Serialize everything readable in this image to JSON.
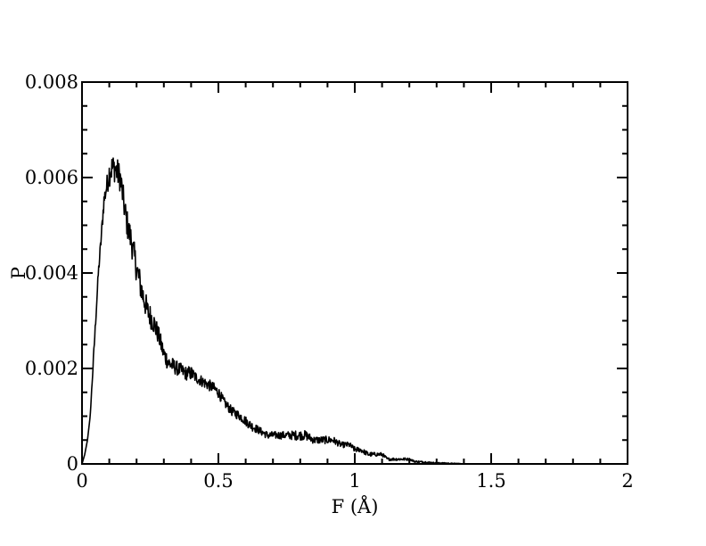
{
  "chart_data": {
    "type": "line",
    "title": "",
    "xlabel": "F (Å)",
    "ylabel": "P",
    "xlim": [
      0,
      2
    ],
    "ylim": [
      0,
      0.008
    ],
    "x_ticks": [
      0,
      0.5,
      1,
      1.5,
      2
    ],
    "x_tick_labels": [
      "0",
      "0.5",
      "1",
      "1.5",
      "2"
    ],
    "y_ticks": [
      0,
      0.002,
      0.004,
      0.006,
      0.008
    ],
    "y_tick_labels": [
      "0",
      "0.002",
      "0.004",
      "0.006",
      "0.008"
    ],
    "grid": false,
    "legend": "none",
    "line_color": "#000000",
    "series": [
      {
        "x": [
          0.0,
          0.01,
          0.02,
          0.03,
          0.04,
          0.05,
          0.06,
          0.07,
          0.08,
          0.09,
          0.1,
          0.11,
          0.12,
          0.13,
          0.14,
          0.15,
          0.16,
          0.17,
          0.18,
          0.19,
          0.2,
          0.22,
          0.24,
          0.26,
          0.28,
          0.3,
          0.32,
          0.35,
          0.38,
          0.4,
          0.42,
          0.45,
          0.48,
          0.5,
          0.52,
          0.55,
          0.58,
          0.6,
          0.62,
          0.65,
          0.68,
          0.7,
          0.72,
          0.75,
          0.78,
          0.8,
          0.82,
          0.85,
          0.88,
          0.9,
          0.92,
          0.95,
          0.98,
          1.0,
          1.02,
          1.05,
          1.08,
          1.1,
          1.12,
          1.15,
          1.18,
          1.2,
          1.22,
          1.25,
          1.28,
          1.3,
          1.32,
          1.35,
          1.38,
          1.4,
          1.42,
          1.45
        ],
        "y": [
          0.0,
          0.0002,
          0.0005,
          0.001,
          0.002,
          0.003,
          0.004,
          0.0047,
          0.0055,
          0.0058,
          0.0061,
          0.0062,
          0.0062,
          0.0061,
          0.006,
          0.0056,
          0.0052,
          0.0049,
          0.0047,
          0.0044,
          0.0041,
          0.0036,
          0.0032,
          0.003,
          0.0027,
          0.0023,
          0.0021,
          0.002,
          0.0019,
          0.0019,
          0.0018,
          0.0017,
          0.0016,
          0.0015,
          0.0013,
          0.0011,
          0.001,
          0.0009,
          0.0008,
          0.0007,
          0.0006,
          0.0006,
          0.0006,
          0.0006,
          0.0006,
          0.0006,
          0.0006,
          0.0005,
          0.0005,
          0.0005,
          0.0005,
          0.0004,
          0.0004,
          0.0003,
          0.0003,
          0.0002,
          0.0002,
          0.0002,
          0.0001,
          0.0001,
          0.0001,
          0.0001,
          5e-05,
          4e-05,
          3e-05,
          2e-05,
          2e-05,
          1e-05,
          1e-05,
          0.0,
          0.0,
          0.0
        ],
        "noise": [
          0,
          0,
          0,
          0,
          0.0001,
          0.0001,
          0.00012,
          0.00015,
          0.0002,
          0.0002,
          0.0003,
          0.0003,
          0.0003,
          0.0003,
          0.0003,
          0.0003,
          0.0003,
          0.0003,
          0.0003,
          0.0003,
          0.0003,
          0.0003,
          0.00025,
          0.00025,
          0.0002,
          0.0002,
          0.00018,
          0.00015,
          0.00015,
          0.00015,
          0.00012,
          0.00012,
          0.00012,
          0.00012,
          0.0001,
          0.0001,
          0.0001,
          0.0001,
          0.0001,
          8e-05,
          8e-05,
          8e-05,
          8e-05,
          8e-05,
          0.0001,
          0.0001,
          0.0001,
          8e-05,
          8e-05,
          8e-05,
          8e-05,
          6e-05,
          6e-05,
          6e-05,
          5e-05,
          5e-05,
          4e-05,
          4e-05,
          3e-05,
          3e-05,
          3e-05,
          2e-05,
          2e-05,
          2e-05,
          1e-05,
          1e-05,
          1e-05,
          1e-05,
          0,
          0,
          0,
          0
        ]
      }
    ]
  }
}
